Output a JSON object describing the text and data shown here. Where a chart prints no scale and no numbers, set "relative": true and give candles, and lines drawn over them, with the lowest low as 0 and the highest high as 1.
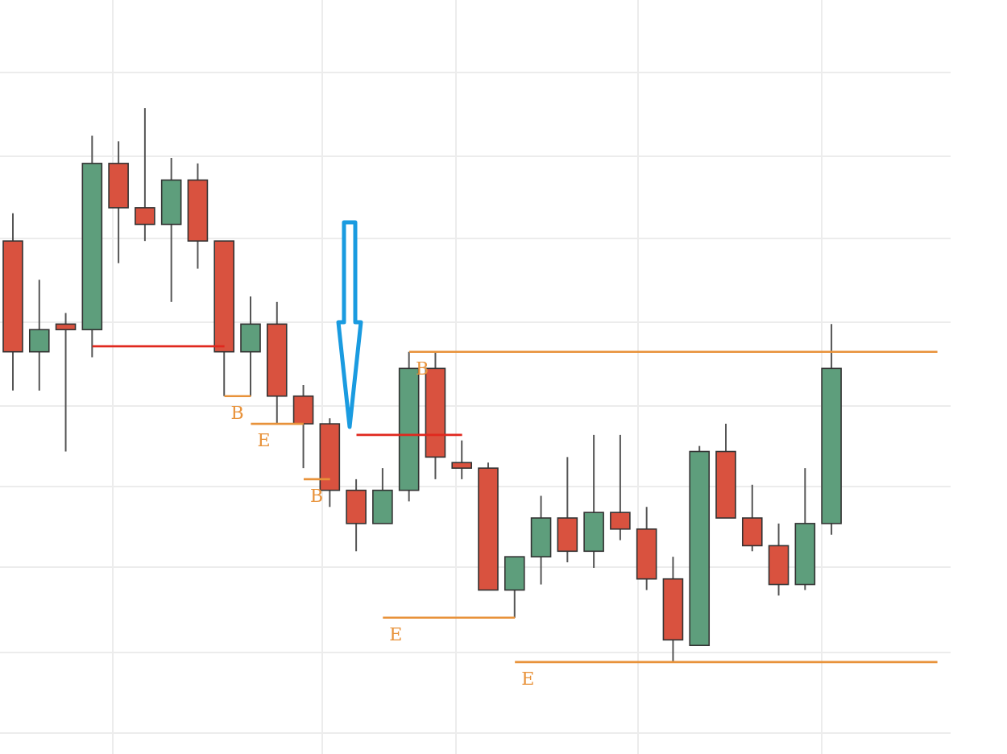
{
  "chart_data": {
    "type": "candlestick",
    "relative": true,
    "grid": true,
    "legend": false,
    "categories": [
      null,
      null,
      null,
      null,
      null,
      null,
      null,
      null,
      null,
      null,
      null,
      null,
      null,
      null,
      null,
      null,
      null,
      null,
      null,
      null,
      null,
      null,
      null,
      null,
      null,
      null,
      null,
      null,
      null,
      null,
      null,
      null,
      null,
      null,
      null,
      null
    ],
    "ohlc": [
      [
        0.76,
        0.81,
        0.49,
        0.56
      ],
      [
        0.56,
        0.69,
        0.49,
        0.6
      ],
      [
        0.61,
        0.63,
        0.38,
        0.6
      ],
      [
        0.6,
        0.95,
        0.55,
        0.9
      ],
      [
        0.9,
        0.94,
        0.72,
        0.82
      ],
      [
        0.82,
        1.0,
        0.76,
        0.79
      ],
      [
        0.79,
        0.91,
        0.65,
        0.87
      ],
      [
        0.87,
        0.9,
        0.71,
        0.76
      ],
      [
        0.76,
        0.76,
        0.48,
        0.56
      ],
      [
        0.56,
        0.66,
        0.48,
        0.61
      ],
      [
        0.61,
        0.65,
        0.43,
        0.48
      ],
      [
        0.48,
        0.5,
        0.35,
        0.43
      ],
      [
        0.43,
        0.44,
        0.28,
        0.31
      ],
      [
        0.31,
        0.33,
        0.2,
        0.25
      ],
      [
        0.25,
        0.35,
        0.25,
        0.31
      ],
      [
        0.31,
        0.56,
        0.29,
        0.53
      ],
      [
        0.53,
        0.56,
        0.33,
        0.37
      ],
      [
        0.36,
        0.4,
        0.33,
        0.35
      ],
      [
        0.35,
        0.36,
        0.13,
        0.13
      ],
      [
        0.13,
        0.19,
        0.08,
        0.19
      ],
      [
        0.19,
        0.3,
        0.14,
        0.26
      ],
      [
        0.26,
        0.37,
        0.18,
        0.2
      ],
      [
        0.2,
        0.41,
        0.17,
        0.27
      ],
      [
        0.27,
        0.41,
        0.22,
        0.24
      ],
      [
        0.24,
        0.28,
        0.13,
        0.15
      ],
      [
        0.15,
        0.19,
        0.0,
        0.04
      ],
      [
        0.03,
        0.39,
        0.03,
        0.38
      ],
      [
        0.38,
        0.43,
        0.26,
        0.26
      ],
      [
        0.26,
        0.32,
        0.2,
        0.21
      ],
      [
        0.21,
        0.25,
        0.12,
        0.14
      ],
      [
        0.14,
        0.35,
        0.13,
        0.25
      ],
      [
        0.25,
        0.61,
        0.23,
        0.53
      ],
      null,
      null,
      null,
      null
    ],
    "colors": [
      "#d9523f",
      "#5e9e7c",
      "#d9523f",
      "#5e9e7c",
      "#d9523f",
      "#d9523f",
      "#5e9e7c",
      "#d9523f",
      "#d9523f",
      "#5e9e7c",
      "#d9523f",
      "#d9523f",
      "#d9523f",
      "#d9523f",
      "#5e9e7c",
      "#5e9e7c",
      "#d9523f",
      "#d9523f",
      "#d9523f",
      "#5e9e7c",
      "#5e9e7c",
      "#d9523f",
      "#5e9e7c",
      "#d9523f",
      "#d9523f",
      "#d9523f",
      "#5e9e7c",
      "#d9523f",
      "#d9523f",
      "#d9523f",
      "#5e9e7c",
      "#5e9e7c",
      null,
      null,
      null,
      null
    ],
    "series": [
      {
        "type": "line",
        "color": "#e0281e",
        "values": [
          null,
          null,
          null,
          0.57,
          0.57,
          0.57,
          0.57,
          0.57,
          0.57,
          null,
          null,
          null,
          null,
          null,
          null,
          null,
          null,
          null,
          null,
          null,
          null,
          null,
          null,
          null,
          null,
          null,
          null,
          null,
          null,
          null,
          null,
          null,
          null,
          null,
          null,
          null
        ]
      },
      {
        "type": "line",
        "name": "B",
        "color": "#e8923a",
        "values": [
          null,
          null,
          null,
          null,
          null,
          null,
          null,
          null,
          0.48,
          0.48,
          null,
          null,
          null,
          null,
          null,
          null,
          null,
          null,
          null,
          null,
          null,
          null,
          null,
          null,
          null,
          null,
          null,
          null,
          null,
          null,
          null,
          null,
          null,
          null,
          null,
          null
        ]
      },
      {
        "type": "line",
        "name": "E",
        "color": "#e8923a",
        "values": [
          null,
          null,
          null,
          null,
          null,
          null,
          null,
          null,
          null,
          0.43,
          0.43,
          0.43,
          null,
          null,
          null,
          null,
          null,
          null,
          null,
          null,
          null,
          null,
          null,
          null,
          null,
          null,
          null,
          null,
          null,
          null,
          null,
          null,
          null,
          null,
          null,
          null
        ]
      },
      {
        "type": "line",
        "name": "B",
        "color": "#e8923a",
        "values": [
          null,
          null,
          null,
          null,
          null,
          null,
          null,
          null,
          null,
          null,
          null,
          0.33,
          0.33,
          null,
          null,
          null,
          null,
          null,
          null,
          null,
          null,
          null,
          null,
          null,
          null,
          null,
          null,
          null,
          null,
          null,
          null,
          null,
          null,
          null,
          null,
          null
        ]
      },
      {
        "type": "line",
        "color": "#e0281e",
        "values": [
          null,
          null,
          null,
          null,
          null,
          null,
          null,
          null,
          null,
          null,
          null,
          null,
          null,
          0.41,
          0.41,
          0.41,
          0.41,
          0.41,
          null,
          null,
          null,
          null,
          null,
          null,
          null,
          null,
          null,
          null,
          null,
          null,
          null,
          null,
          null,
          null,
          null,
          null
        ]
      },
      {
        "type": "line",
        "name": "B",
        "color": "#e8923a",
        "values": [
          null,
          null,
          null,
          null,
          null,
          null,
          null,
          null,
          null,
          null,
          null,
          null,
          null,
          null,
          null,
          0.56,
          0.56,
          0.56,
          0.56,
          0.56,
          0.56,
          0.56,
          0.56,
          0.56,
          0.56,
          0.56,
          0.56,
          0.56,
          0.56,
          0.56,
          0.56,
          0.56,
          0.56,
          0.56,
          0.56,
          0.56
        ]
      },
      {
        "type": "line",
        "name": "E",
        "color": "#e8923a",
        "values": [
          null,
          null,
          null,
          null,
          null,
          null,
          null,
          null,
          null,
          null,
          null,
          null,
          null,
          null,
          0.08,
          0.08,
          0.08,
          0.08,
          0.08,
          0.08,
          null,
          null,
          null,
          null,
          null,
          null,
          null,
          null,
          null,
          null,
          null,
          null,
          null,
          null,
          null,
          null
        ]
      },
      {
        "type": "line",
        "name": "E",
        "color": "#e8923a",
        "values": [
          null,
          null,
          null,
          null,
          null,
          null,
          null,
          null,
          null,
          null,
          null,
          null,
          null,
          null,
          null,
          null,
          null,
          null,
          null,
          0,
          0,
          0,
          0,
          0,
          0,
          0,
          0,
          0,
          0,
          0,
          0,
          0,
          0,
          0,
          0,
          0
        ]
      }
    ]
  }
}
